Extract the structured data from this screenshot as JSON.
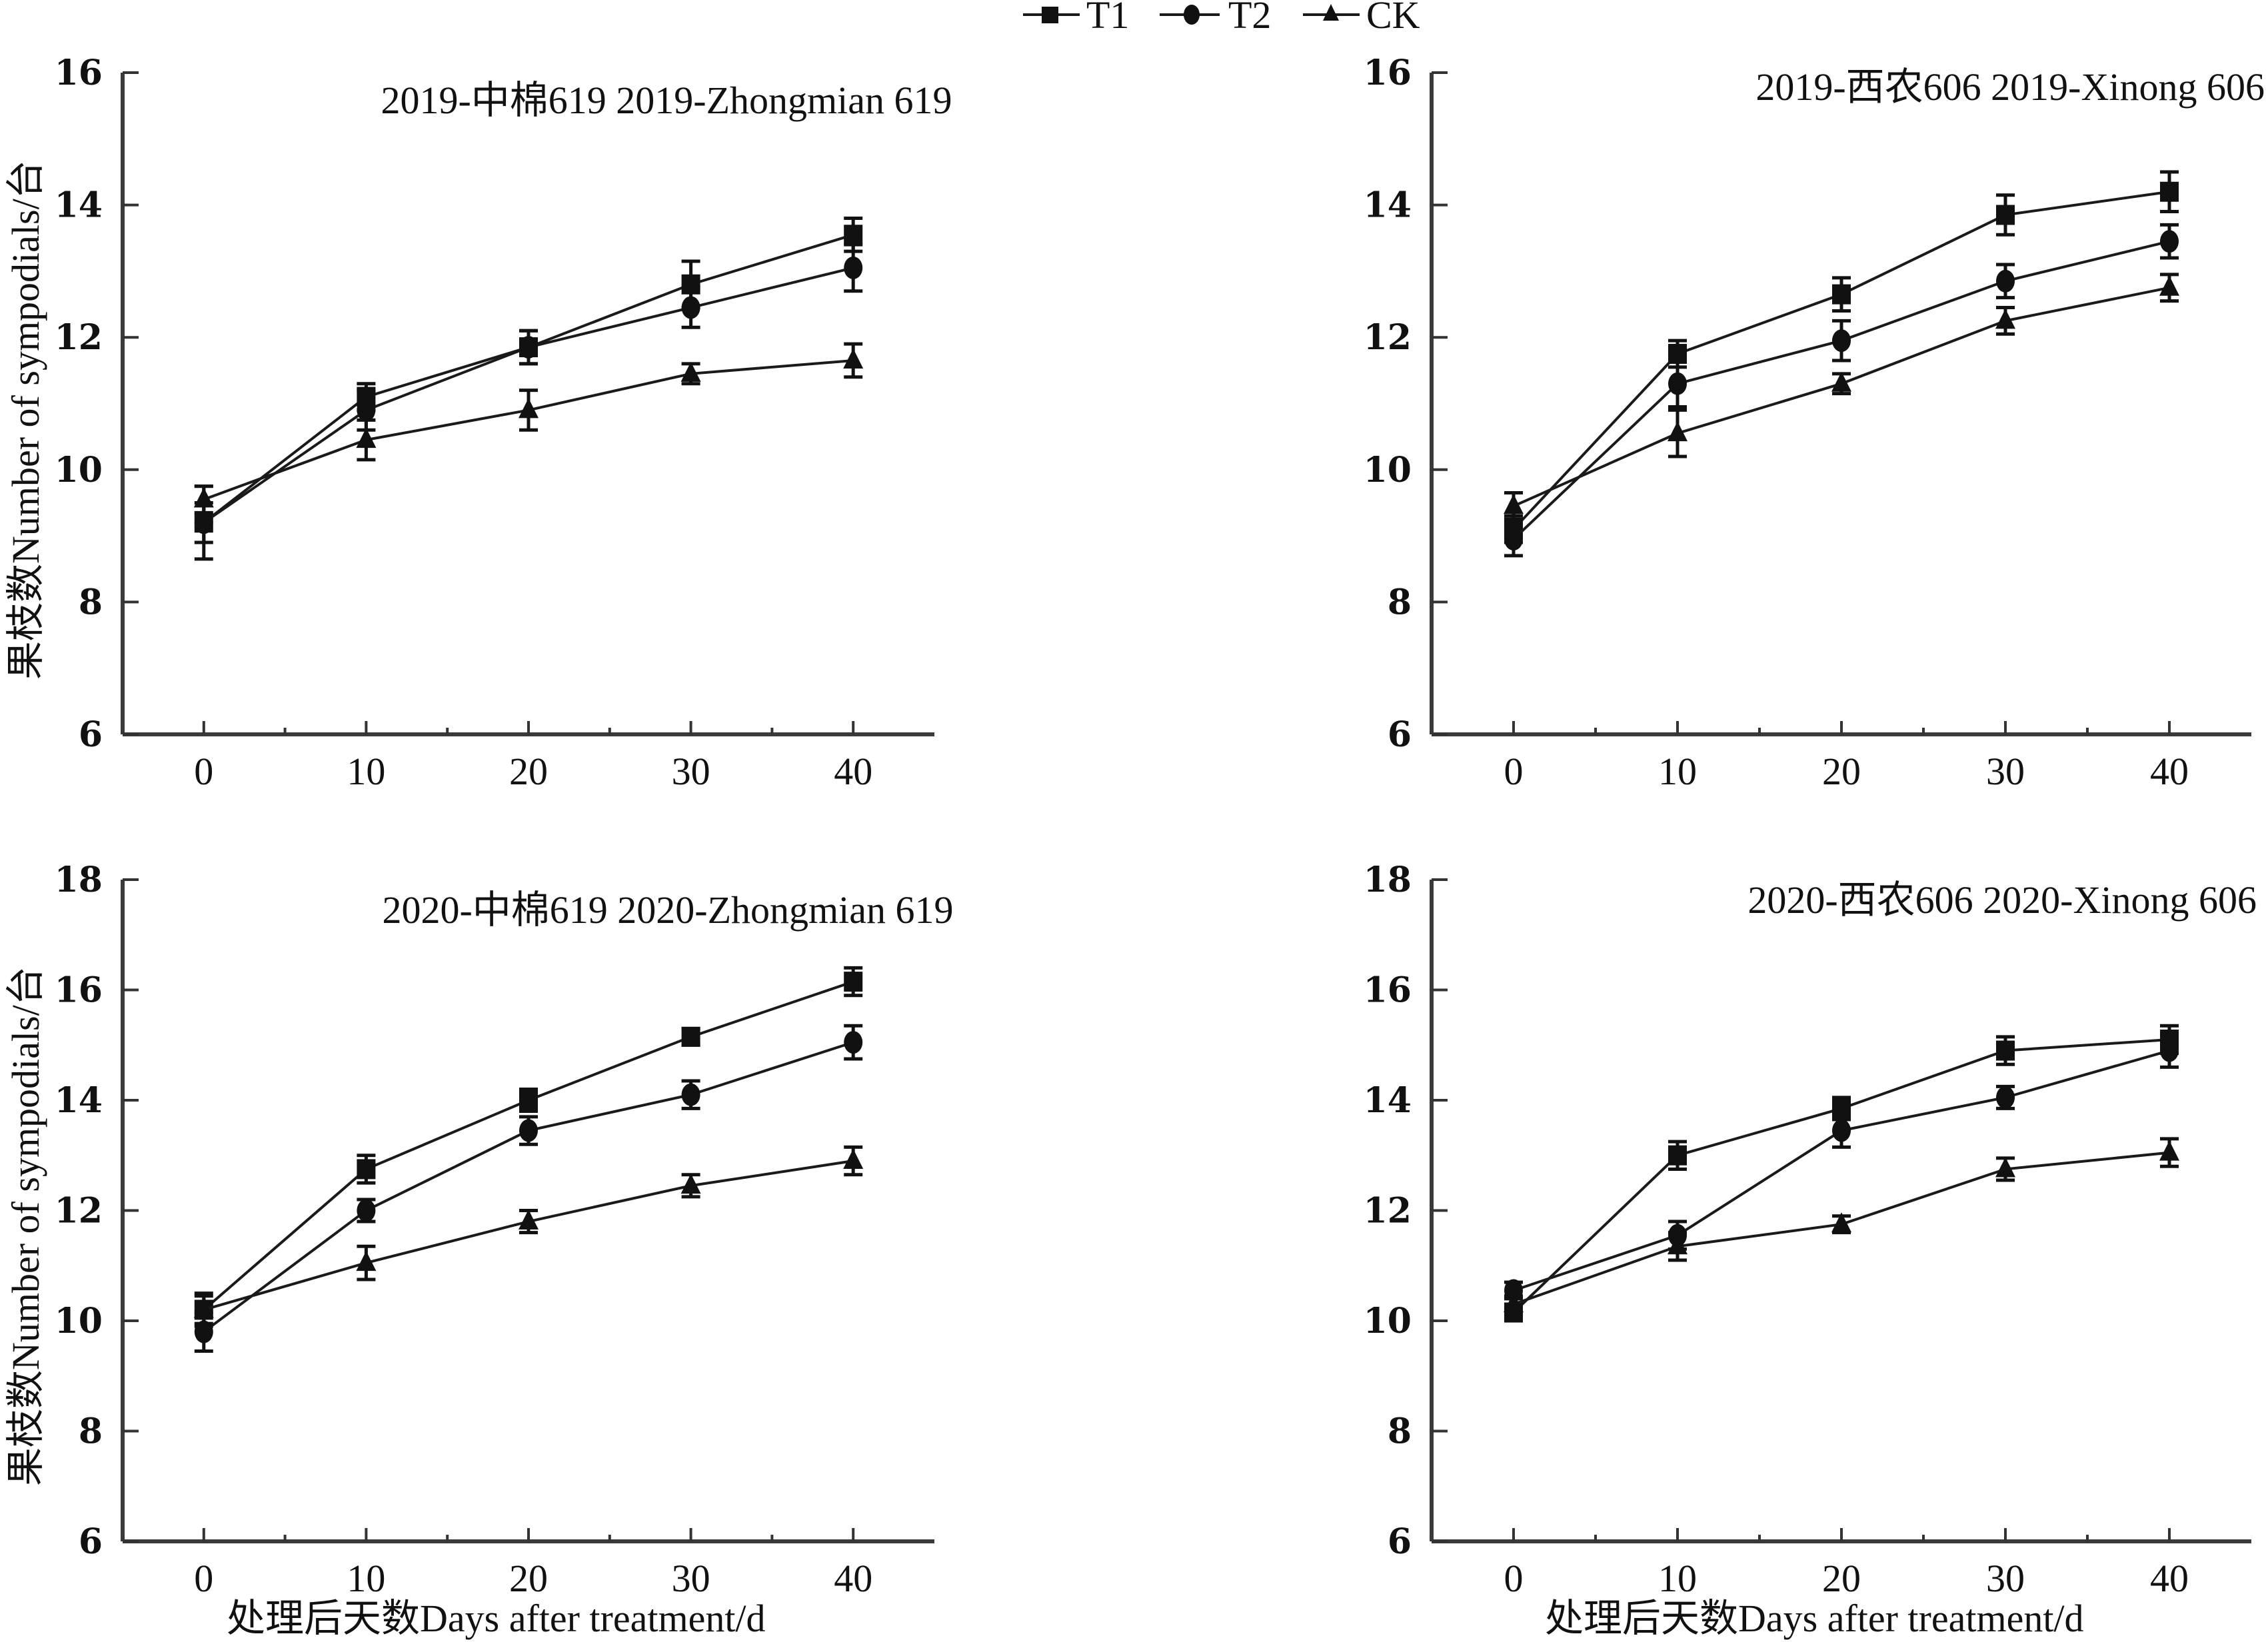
{
  "legend": {
    "position": "top-center",
    "entries": [
      {
        "name": "T1",
        "marker": "square"
      },
      {
        "name": "T2",
        "marker": "circle"
      },
      {
        "name": "CK",
        "marker": "triangle"
      }
    ]
  },
  "axis_titles": {
    "y": "果枝数Number of sympodials/台",
    "x": "处理后天数Days after treatment/d"
  },
  "chart_data": [
    {
      "type": "line",
      "title": "2019-中棉619 2019-Zhongmian 619",
      "xlabel": "",
      "ylabel": "果枝数Number of sympodials/台",
      "x": [
        0,
        10,
        20,
        30,
        40
      ],
      "xticks": [
        "0",
        "10",
        "20",
        "30",
        "40"
      ],
      "xlim": [
        -5,
        45
      ],
      "ylim": [
        6,
        16
      ],
      "yticks": [
        "6",
        "8",
        "10",
        "12",
        "14",
        "16"
      ],
      "grid": false,
      "series": [
        {
          "name": "T1",
          "values": [
            9.2,
            11.1,
            11.85,
            12.8,
            13.55
          ],
          "error": [
            0.3,
            0.2,
            0.25,
            0.35,
            0.25
          ]
        },
        {
          "name": "T2",
          "values": [
            9.2,
            10.9,
            11.85,
            12.45,
            13.05
          ],
          "error": [
            0.55,
            0.3,
            0.25,
            0.3,
            0.35
          ]
        },
        {
          "name": "CK",
          "values": [
            9.55,
            10.45,
            10.9,
            11.45,
            11.65
          ],
          "error": [
            0.2,
            0.3,
            0.3,
            0.15,
            0.25
          ]
        }
      ]
    },
    {
      "type": "line",
      "title": "2019-西农606 2019-Xinong 606",
      "xlabel": "",
      "ylabel": "",
      "x": [
        0,
        10,
        20,
        30,
        40
      ],
      "xticks": [
        "0",
        "10",
        "20",
        "30",
        "40"
      ],
      "xlim": [
        -5,
        45
      ],
      "ylim": [
        6,
        16
      ],
      "yticks": [
        "6",
        "8",
        "10",
        "12",
        "14",
        "16"
      ],
      "grid": false,
      "series": [
        {
          "name": "T1",
          "values": [
            9.1,
            11.75,
            12.65,
            13.85,
            14.2
          ],
          "error": [
            0.2,
            0.2,
            0.25,
            0.3,
            0.3
          ]
        },
        {
          "name": "T2",
          "values": [
            8.95,
            11.3,
            11.95,
            12.85,
            13.45
          ],
          "error": [
            0.25,
            0.35,
            0.3,
            0.25,
            0.25
          ]
        },
        {
          "name": "CK",
          "values": [
            9.45,
            10.55,
            11.3,
            12.25,
            12.75
          ],
          "error": [
            0.2,
            0.35,
            0.15,
            0.2,
            0.2
          ]
        }
      ]
    },
    {
      "type": "line",
      "title": "2020-中棉619 2020-Zhongmian 619",
      "xlabel": "处理后天数Days after treatment/d",
      "ylabel": "果枝数Number of sympodials/台",
      "x": [
        0,
        10,
        20,
        30,
        40
      ],
      "xticks": [
        "0",
        "10",
        "20",
        "30",
        "40"
      ],
      "xlim": [
        -5,
        45
      ],
      "ylim": [
        6,
        18
      ],
      "yticks": [
        "6",
        "8",
        "10",
        "12",
        "14",
        "16",
        "18"
      ],
      "grid": false,
      "series": [
        {
          "name": "T1",
          "values": [
            10.2,
            12.75,
            14.0,
            15.15,
            16.15
          ],
          "error": [
            0.3,
            0.25,
            0.2,
            0.15,
            0.25
          ]
        },
        {
          "name": "T2",
          "values": [
            9.8,
            12.0,
            13.45,
            14.1,
            15.05
          ],
          "error": [
            0.35,
            0.2,
            0.25,
            0.25,
            0.3
          ]
        },
        {
          "name": "CK",
          "values": [
            10.2,
            11.05,
            11.8,
            12.45,
            12.9
          ],
          "error": [
            0.25,
            0.3,
            0.2,
            0.2,
            0.25
          ]
        }
      ]
    },
    {
      "type": "line",
      "title": "2020-西农606 2020-Xinong 606",
      "xlabel": "处理后天数Days after treatment/d",
      "ylabel": "",
      "x": [
        0,
        10,
        20,
        30,
        40
      ],
      "xticks": [
        "0",
        "10",
        "20",
        "30",
        "40"
      ],
      "xlim": [
        -5,
        45
      ],
      "ylim": [
        6,
        18
      ],
      "yticks": [
        "6",
        "8",
        "10",
        "12",
        "14",
        "16",
        "18"
      ],
      "grid": false,
      "series": [
        {
          "name": "T1",
          "values": [
            10.15,
            13.0,
            13.85,
            14.9,
            15.1
          ],
          "error": [
            0.15,
            0.25,
            0.2,
            0.25,
            0.25
          ]
        },
        {
          "name": "T2",
          "values": [
            10.55,
            11.55,
            13.45,
            14.05,
            14.9
          ],
          "error": [
            0.15,
            0.25,
            0.3,
            0.2,
            0.3
          ]
        },
        {
          "name": "CK",
          "values": [
            10.3,
            11.35,
            11.75,
            12.75,
            13.05
          ],
          "error": [
            0.15,
            0.25,
            0.15,
            0.2,
            0.25
          ]
        }
      ]
    }
  ]
}
